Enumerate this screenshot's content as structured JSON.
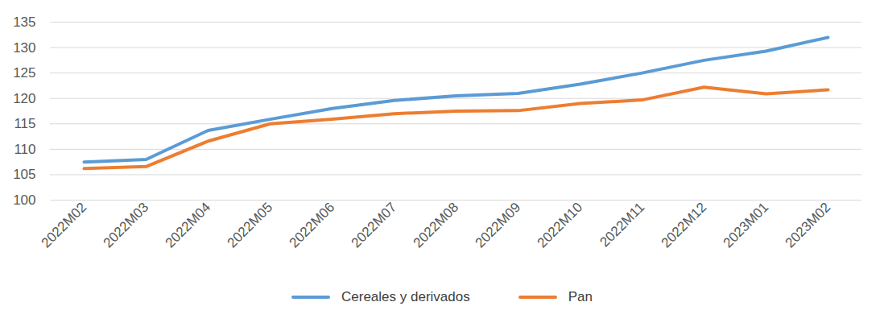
{
  "chart_data": {
    "type": "line",
    "categories": [
      "2022M02",
      "2022M03",
      "2022M04",
      "2022M05",
      "2022M06",
      "2022M07",
      "2022M08",
      "2022M09",
      "2022M10",
      "2022M11",
      "2022M12",
      "2023M01",
      "2023M02"
    ],
    "series": [
      {
        "name": "Cereales y derivados",
        "color": "#5b9bd5",
        "values": [
          107.5,
          108.0,
          113.7,
          115.9,
          118.0,
          119.6,
          120.5,
          121.0,
          122.8,
          125.0,
          127.5,
          129.3,
          132.0
        ]
      },
      {
        "name": "Pan",
        "color": "#ed7d31",
        "values": [
          106.2,
          106.6,
          111.6,
          115.0,
          115.9,
          117.0,
          117.5,
          117.6,
          119.0,
          119.7,
          122.2,
          120.9,
          121.7
        ]
      }
    ],
    "ylim": [
      100,
      135
    ],
    "yticks": [
      100,
      105,
      110,
      115,
      120,
      125,
      130,
      135
    ],
    "grid": true,
    "legend": "bottom"
  }
}
